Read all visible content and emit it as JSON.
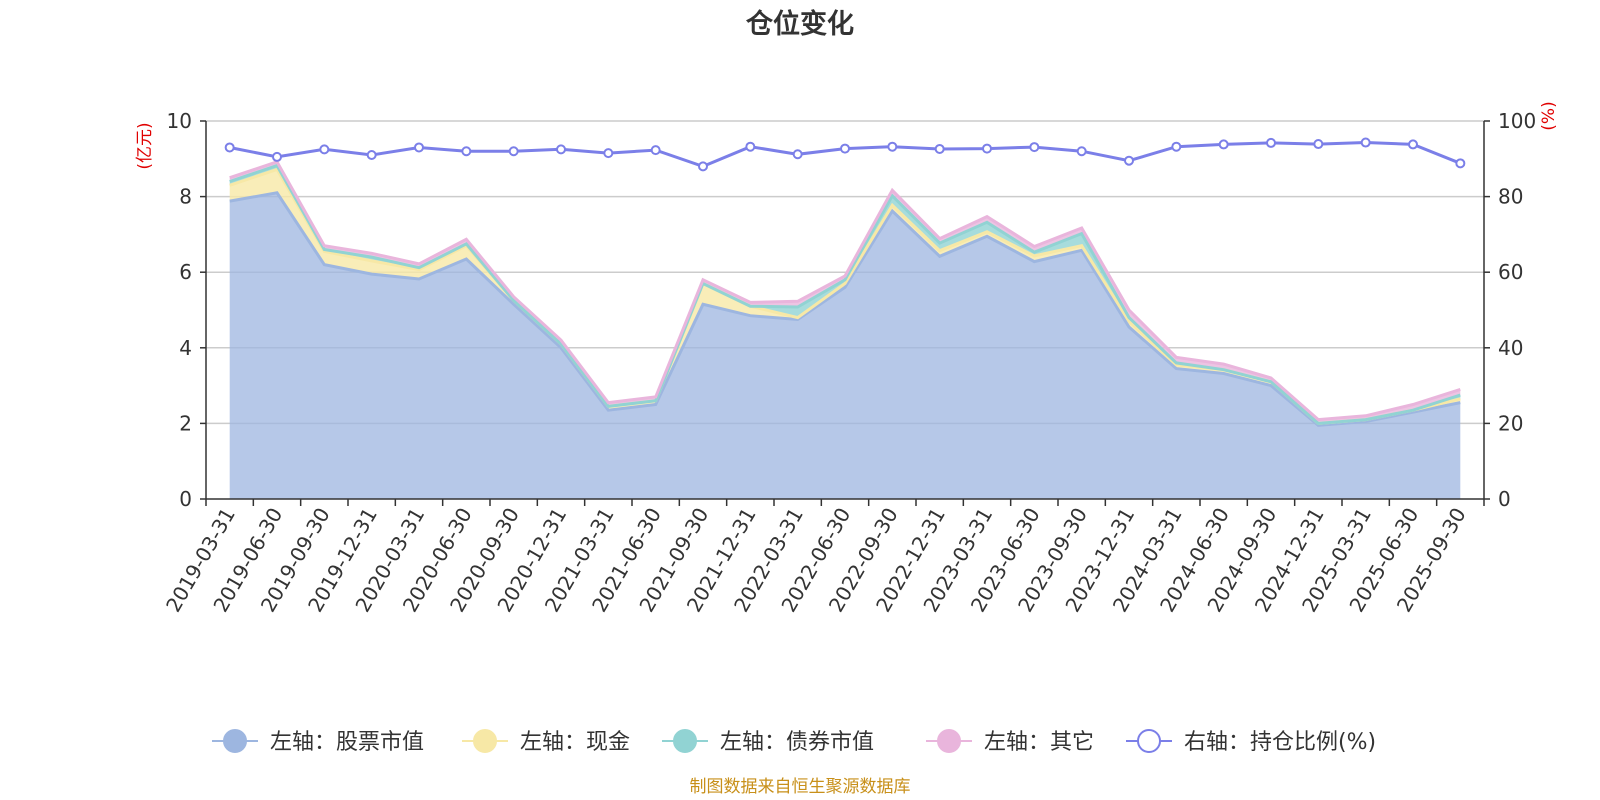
{
  "chart_data": {
    "type": "area",
    "title": "仓位变化",
    "source_note": "制图数据来自恒生聚源数据库",
    "left_axis": {
      "unit": "(亿元)",
      "min": 0,
      "max": 10,
      "ticks": [
        "0",
        "2",
        "4",
        "6",
        "8",
        "10"
      ]
    },
    "right_axis": {
      "unit": "(%)",
      "min": 0,
      "max": 100,
      "ticks": [
        "0",
        "20",
        "40",
        "60",
        "80",
        "100"
      ]
    },
    "grid": true,
    "legend_position": "bottom",
    "categories": [
      "2019-03-31",
      "2019-06-30",
      "2019-09-30",
      "2019-12-31",
      "2020-03-31",
      "2020-06-30",
      "2020-09-30",
      "2020-12-31",
      "2021-03-31",
      "2021-06-30",
      "2021-09-30",
      "2021-12-31",
      "2022-03-31",
      "2022-06-30",
      "2022-09-30",
      "2022-12-31",
      "2023-03-31",
      "2023-06-30",
      "2023-09-30",
      "2023-12-31",
      "2024-03-31",
      "2024-06-30",
      "2024-09-30",
      "2024-12-31",
      "2025-03-31",
      "2025-06-30",
      "2025-09-30"
    ],
    "stacked_series": [
      {
        "name": "左轴：股票市值",
        "axis": "left",
        "color": "#9db6e0",
        "values": [
          7.88,
          8.1,
          6.2,
          5.95,
          5.82,
          6.35,
          5.15,
          4.0,
          2.35,
          2.5,
          5.15,
          4.85,
          4.75,
          5.6,
          7.62,
          6.42,
          6.95,
          6.28,
          6.58,
          4.55,
          3.45,
          3.32,
          3.0,
          1.95,
          2.05,
          2.3,
          2.55
        ]
      },
      {
        "name": "左轴：现金",
        "axis": "left",
        "color": "#f7e8a6",
        "values": [
          0.42,
          0.62,
          0.35,
          0.35,
          0.25,
          0.35,
          0.1,
          0.1,
          0.1,
          0.1,
          0.55,
          0.25,
          0.05,
          0.1,
          0.15,
          0.15,
          0.12,
          0.15,
          0.12,
          0.15,
          0.1,
          0.1,
          0.1,
          0.05,
          0.05,
          0.05,
          0.1
        ]
      },
      {
        "name": "左轴：债券市值",
        "axis": "left",
        "color": "#91d3d3",
        "values": [
          0.1,
          0.1,
          0.05,
          0.1,
          0.05,
          0.05,
          0.0,
          0.0,
          0.0,
          0.0,
          0.0,
          0.0,
          0.28,
          0.1,
          0.25,
          0.2,
          0.25,
          0.1,
          0.32,
          0.1,
          0.05,
          0.0,
          0.0,
          0.0,
          0.0,
          0.0,
          0.1
        ]
      },
      {
        "name": "左轴：其它",
        "axis": "left",
        "color": "#e9b5dc",
        "values": [
          0.1,
          0.1,
          0.1,
          0.1,
          0.1,
          0.12,
          0.1,
          0.1,
          0.1,
          0.1,
          0.1,
          0.1,
          0.15,
          0.1,
          0.15,
          0.12,
          0.15,
          0.15,
          0.15,
          0.2,
          0.15,
          0.15,
          0.1,
          0.1,
          0.1,
          0.15,
          0.15
        ]
      }
    ],
    "line_series": {
      "name": "右轴：持仓比例(%)",
      "axis": "right",
      "color": "#7b7fe8",
      "values": [
        93.0,
        90.5,
        92.5,
        91.0,
        93.0,
        92.0,
        92.0,
        92.5,
        91.5,
        92.3,
        88.0,
        93.2,
        91.2,
        92.7,
        93.2,
        92.6,
        92.7,
        93.1,
        92.0,
        89.5,
        93.2,
        93.8,
        94.2,
        93.9,
        94.3,
        93.8,
        88.8
      ]
    }
  }
}
